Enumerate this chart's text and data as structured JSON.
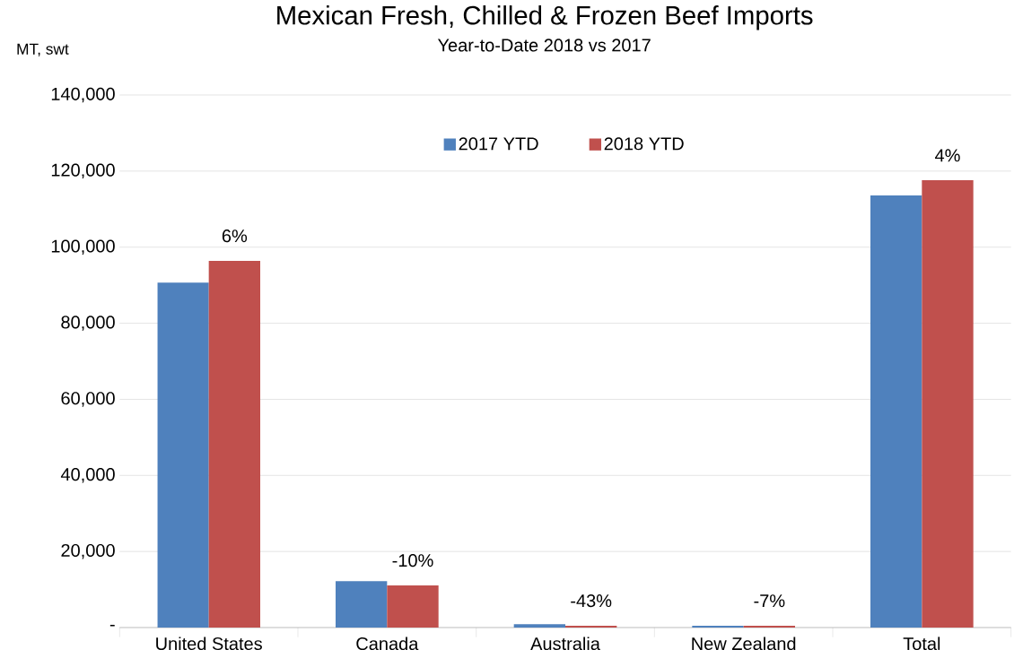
{
  "chart_data": {
    "type": "bar",
    "title": "Mexican Fresh, Chilled & Frozen Beef Imports",
    "subtitle": "Year-to-Date 2018 vs 2017",
    "ylabel": "MT, swt",
    "categories": [
      "United States",
      "Canada",
      "Australia",
      "New Zealand",
      "Total"
    ],
    "series": [
      {
        "name": "2017 YTD",
        "color": "#4f81bd",
        "values": [
          90700,
          12200,
          900,
          500,
          113600
        ]
      },
      {
        "name": "2018 YTD",
        "color": "#c0504d",
        "values": [
          96400,
          11100,
          500,
          500,
          117600
        ]
      }
    ],
    "ylim": [
      0,
      140000
    ],
    "yticks": [
      {
        "value": 0,
        "label": "-"
      },
      {
        "value": 20000,
        "label": "20,000"
      },
      {
        "value": 40000,
        "label": "40,000"
      },
      {
        "value": 60000,
        "label": "60,000"
      },
      {
        "value": 80000,
        "label": "80,000"
      },
      {
        "value": 100000,
        "label": "100,000"
      },
      {
        "value": 120000,
        "label": "120,000"
      },
      {
        "value": 140000,
        "label": "140,000"
      }
    ],
    "grid": "y",
    "legend": "top",
    "annotations": [
      {
        "text": "6%",
        "x": "United States",
        "y": 96400
      },
      {
        "text": "-10%",
        "x": "Canada",
        "y": 11100
      },
      {
        "text": "-43%",
        "x": "Australia",
        "y": 500
      },
      {
        "text": "-7%",
        "x": "New Zealand",
        "y": 500
      },
      {
        "text": "4%",
        "x": "Total",
        "y": 117600
      }
    ]
  }
}
